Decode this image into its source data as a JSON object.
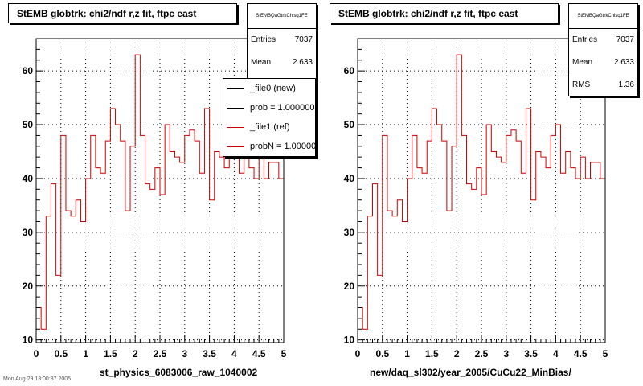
{
  "colors": {
    "hist_new": "#000000",
    "hist_ref": "#cc0000",
    "frame": "#000000",
    "grid": "#000000",
    "background": "#ffffff"
  },
  "footer": {
    "text": "Mon Aug 29 13:00:37 2005"
  },
  "pads": [
    {
      "title": "StEMB globtrk: chi2/ndf r,z fit, ftpc east",
      "stats": {
        "name": "StEMBQaGtrkChisq1FE",
        "rows": [
          {
            "label": "Entries",
            "value": "7037"
          },
          {
            "label": "Mean",
            "value": "2.633"
          }
        ]
      },
      "legend": [
        {
          "text": "_file0 (new)",
          "color": "#000000"
        },
        {
          "text": "prob = 1.000000",
          "color": "#000000"
        },
        {
          "text": "_file1 (ref)",
          "color": "#cc0000"
        },
        {
          "text": "probN = 1.000000",
          "color": "#cc0000"
        }
      ],
      "xtitle": "st_physics_6083006_raw_1040002"
    },
    {
      "title": "StEMB globtrk: chi2/ndf r,z fit, ftpc east",
      "stats": {
        "name": "StEMBQaGtrkChisq1FE",
        "rows": [
          {
            "label": "Entries",
            "value": "7037"
          },
          {
            "label": "Mean",
            "value": "2.633"
          },
          {
            "label": "RMS",
            "value": "1.36"
          }
        ]
      },
      "legend": [],
      "xtitle": "new/daq_sl302/year_2005/CuCu22_MinBias/"
    }
  ],
  "chart_data": [
    {
      "type": "histogram",
      "title": "StEMB globtrk: chi2/ndf r,z fit, ftpc east",
      "xlabel": "st_physics_6083006_raw_1040002",
      "xlim": [
        0,
        5
      ],
      "ylim": [
        9.5,
        66
      ],
      "xticks": [
        "0",
        "0.5",
        "1",
        "1.5",
        "2",
        "2.5",
        "3",
        "3.5",
        "4",
        "4.5",
        "5"
      ],
      "yticks": [
        "10",
        "20",
        "30",
        "40",
        "50",
        "60"
      ],
      "grid": true,
      "bin_width": 0.1,
      "series": [
        {
          "name": "_file1 (ref)",
          "values": [
            16,
            12,
            33,
            39,
            22,
            48,
            34,
            33,
            36,
            32,
            40,
            48,
            42,
            41,
            47,
            53,
            50,
            47,
            34,
            46,
            63,
            48,
            39,
            38,
            42,
            37,
            50,
            45,
            44,
            43,
            48,
            49,
            47,
            41,
            53,
            36,
            45,
            44,
            42,
            48,
            50,
            41,
            45,
            42,
            40,
            44,
            40,
            43,
            43,
            40
          ]
        }
      ]
    },
    {
      "type": "histogram",
      "title": "StEMB globtrk: chi2/ndf r,z fit, ftpc east",
      "xlabel": "new/daq_sl302/year_2005/CuCu22_MinBias/",
      "xlim": [
        0,
        5
      ],
      "ylim": [
        9.5,
        66
      ],
      "xticks": [
        "0",
        "0.5",
        "1",
        "1.5",
        "2",
        "2.5",
        "3",
        "3.5",
        "4",
        "4.5",
        "5"
      ],
      "yticks": [
        "10",
        "20",
        "30",
        "40",
        "50",
        "60"
      ],
      "grid": true,
      "bin_width": 0.1,
      "series": [
        {
          "name": "",
          "values": [
            16,
            12,
            33,
            39,
            22,
            48,
            34,
            33,
            36,
            32,
            40,
            48,
            42,
            41,
            47,
            53,
            50,
            47,
            34,
            46,
            63,
            48,
            39,
            38,
            42,
            37,
            50,
            45,
            44,
            43,
            48,
            49,
            47,
            41,
            53,
            36,
            45,
            44,
            42,
            48,
            50,
            41,
            45,
            42,
            40,
            44,
            40,
            43,
            43,
            40
          ]
        }
      ]
    }
  ]
}
